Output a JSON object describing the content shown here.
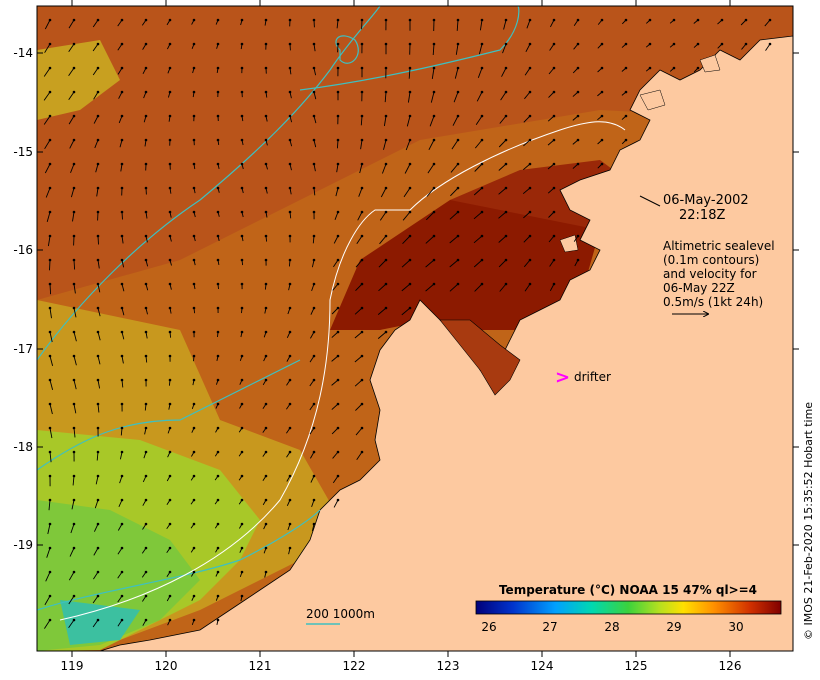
{
  "map": {
    "lon_ticks": [
      "119",
      "120",
      "121",
      "122",
      "123",
      "124",
      "125",
      "126"
    ],
    "lat_ticks": [
      "-14",
      "-15",
      "-16",
      "-17",
      "-18",
      "-19"
    ],
    "date_label": "06-May-2002",
    "time_label": "22:18Z",
    "legend_lines": [
      "Altimetric sealevel",
      "(0.1m contours)",
      "and velocity for",
      "06-May 22Z",
      "0.5m/s (1kt 24h)"
    ],
    "drifter_label": "drifter",
    "bathy_label": "200  1000m",
    "colorbar_title": "Temperature (°C) NOAA 15 47% ql>=4",
    "colorbar_ticks": [
      "26",
      "27",
      "28",
      "29",
      "30"
    ],
    "credit": "© IMOS 21-Feb-2020 15:35:52 Hobart time",
    "colors": {
      "land": "#fdc9a0",
      "warm": "#b24a10",
      "hot": "#8c1a00",
      "mid": "#c46a1c",
      "cool": "#c8a020",
      "green": "#7fc83a",
      "bathy": "#3ec0c0",
      "drifter": "#ff00ff"
    }
  }
}
